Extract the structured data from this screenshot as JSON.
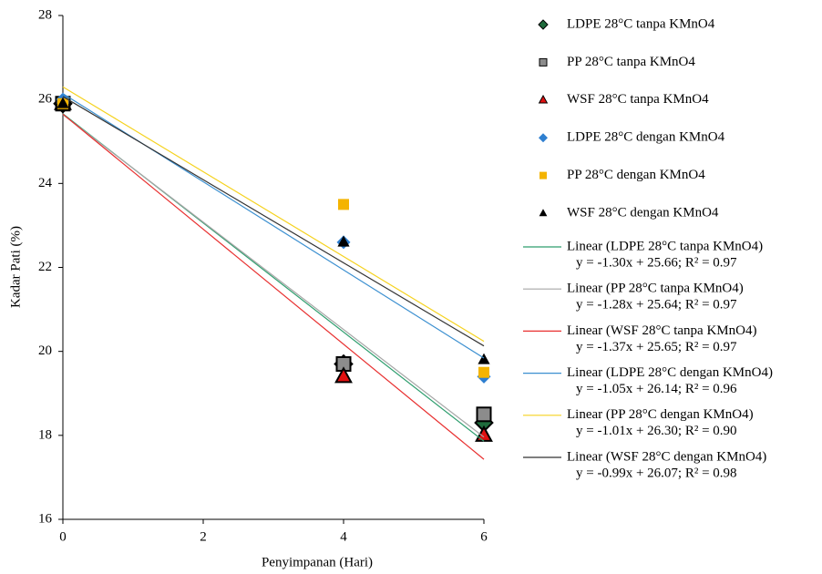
{
  "chart_data": {
    "type": "scatter",
    "x_label": "Penyimpanan (Hari)",
    "y_label": "Kadar Pati (%)",
    "xlim": [
      0,
      6
    ],
    "xticks": [
      0,
      2,
      4,
      6
    ],
    "ylim": [
      16,
      28
    ],
    "yticks": [
      16,
      18,
      20,
      22,
      24,
      26,
      28
    ],
    "series": [
      {
        "name": "LDPE 28°C tanpa KMnO4",
        "color": "#1f6b3c",
        "edgecolor": "#000000",
        "marker": "diamond",
        "x": [
          0,
          4,
          6
        ],
        "values": [
          25.9,
          19.7,
          18.3
        ],
        "trendline": {
          "name": "Linear (LDPE 28°C tanpa KMnO4)",
          "equation": "y = -1.30x + 25.66; R² = 0.97",
          "slope": -1.3,
          "intercept": 25.66,
          "color": "#2e9e6e"
        }
      },
      {
        "name": "PP 28°C tanpa KMnO4",
        "color": "#8c8c8c",
        "edgecolor": "#000000",
        "marker": "square",
        "x": [
          0,
          4,
          6
        ],
        "values": [
          25.9,
          19.7,
          18.5
        ],
        "trendline": {
          "name": "Linear (PP 28°C tanpa KMnO4)",
          "equation": "y = -1.28x + 25.64; R² = 0.97",
          "slope": -1.28,
          "intercept": 25.64,
          "color": "#a6a6a6"
        }
      },
      {
        "name": "WSF 28°C tanpa KMnO4",
        "color": "#e01010",
        "edgecolor": "#000000",
        "marker": "triangle",
        "x": [
          0,
          4,
          6
        ],
        "values": [
          25.9,
          19.4,
          18.0
        ],
        "trendline": {
          "name": "Linear (WSF 28°C tanpa KMnO4)",
          "equation": "y = -1.37x + 25.65; R² = 0.97",
          "slope": -1.37,
          "intercept": 25.65,
          "color": "#e83030"
        }
      },
      {
        "name": "LDPE 28°C dengan KMnO4",
        "color": "#2e7fd0",
        "edgecolor": null,
        "marker": "diamond",
        "x": [
          0,
          4,
          6
        ],
        "values": [
          26.0,
          22.6,
          19.4
        ],
        "trendline": {
          "name": "Linear (LDPE 28°C dengan KMnO4)",
          "equation": "y = -1.05x + 26.14;  R² = 0.96",
          "slope": -1.05,
          "intercept": 26.14,
          "color": "#3a8fd0"
        }
      },
      {
        "name": "PP 28°C dengan KMnO4",
        "color": "#f4b400",
        "edgecolor": null,
        "marker": "square",
        "x": [
          0,
          4,
          6
        ],
        "values": [
          25.9,
          23.5,
          19.5
        ],
        "trendline": {
          "name": "Linear (PP 28°C dengan KMnO4)",
          "equation": "y = -1.01x + 26.30;  R² = 0.90",
          "slope": -1.01,
          "intercept": 26.3,
          "color": "#f5d21e"
        }
      },
      {
        "name": "WSF 28°C dengan KMnO4",
        "color": "#000000",
        "edgecolor": null,
        "marker": "triangle",
        "x": [
          0,
          4,
          6
        ],
        "values": [
          25.9,
          22.6,
          19.8
        ],
        "trendline": {
          "name": "Linear (WSF 28°C dengan KMnO4)",
          "equation": "y = -0.99x + 26.07;  R² = 0.98",
          "slope": -0.99,
          "intercept": 26.07,
          "color": "#333333"
        }
      }
    ]
  }
}
